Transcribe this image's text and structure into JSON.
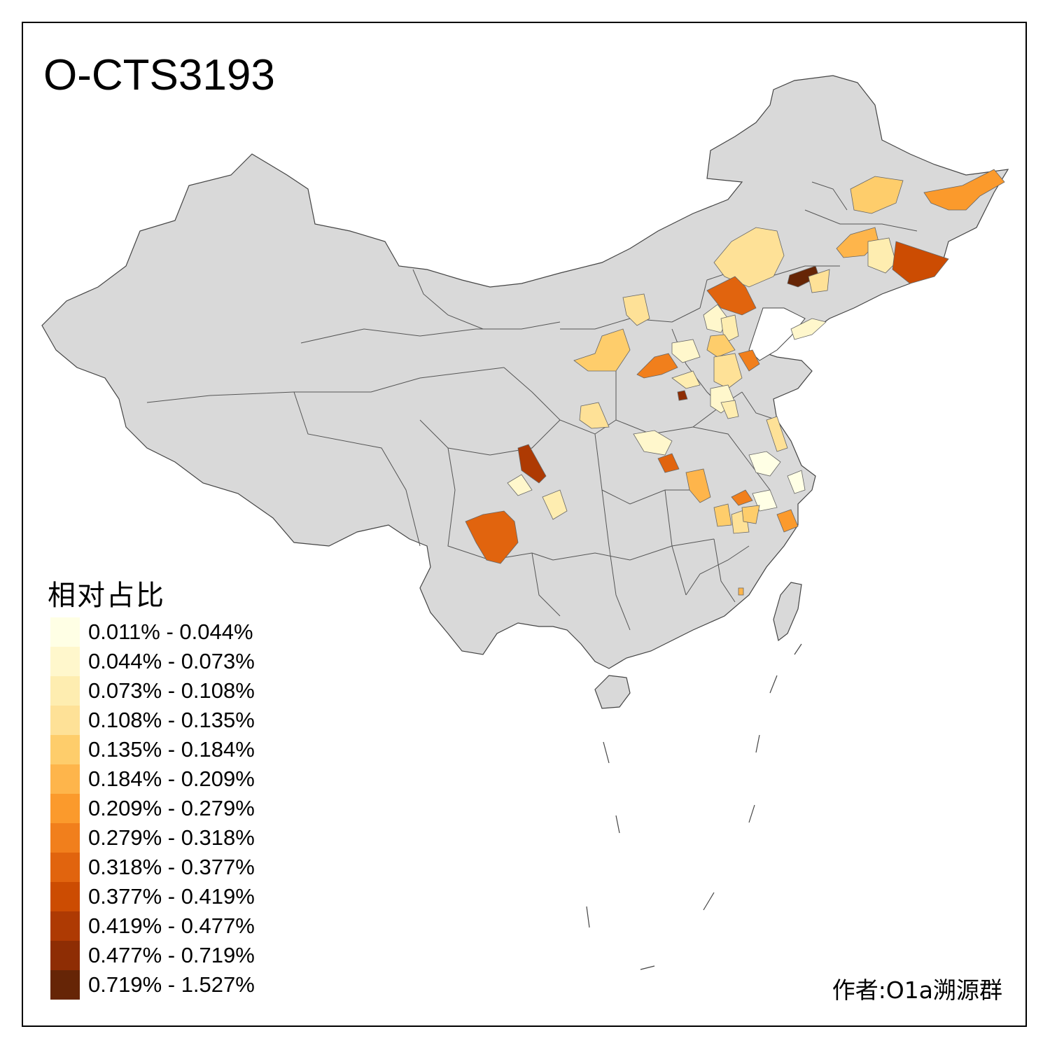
{
  "title": "O-CTS3193",
  "legend": {
    "title": "相对占比",
    "items": [
      {
        "label": "0.011% - 0.044%",
        "color": "#FFFFE5"
      },
      {
        "label": "0.044% - 0.073%",
        "color": "#FFF7CC"
      },
      {
        "label": "0.073% - 0.108%",
        "color": "#FEEDB0"
      },
      {
        "label": "0.108% - 0.135%",
        "color": "#FEE197"
      },
      {
        "label": "0.135% - 0.184%",
        "color": "#FECD6B"
      },
      {
        "label": "0.184% - 0.209%",
        "color": "#FEB54B"
      },
      {
        "label": "0.209% - 0.279%",
        "color": "#FB9A2C"
      },
      {
        "label": "0.279% - 0.318%",
        "color": "#F17F1C"
      },
      {
        "label": "0.318% - 0.377%",
        "color": "#E1640E"
      },
      {
        "label": "0.377% - 0.419%",
        "color": "#CC4C02"
      },
      {
        "label": "0.419% - 0.477%",
        "color": "#AE3A03"
      },
      {
        "label": "0.477% - 0.719%",
        "color": "#8E2D04"
      },
      {
        "label": "0.719% - 1.527%",
        "color": "#662506"
      }
    ]
  },
  "author": "作者:O1a溯源群",
  "map_colors": {
    "land": "#D9D9D9",
    "border": "#555555"
  }
}
